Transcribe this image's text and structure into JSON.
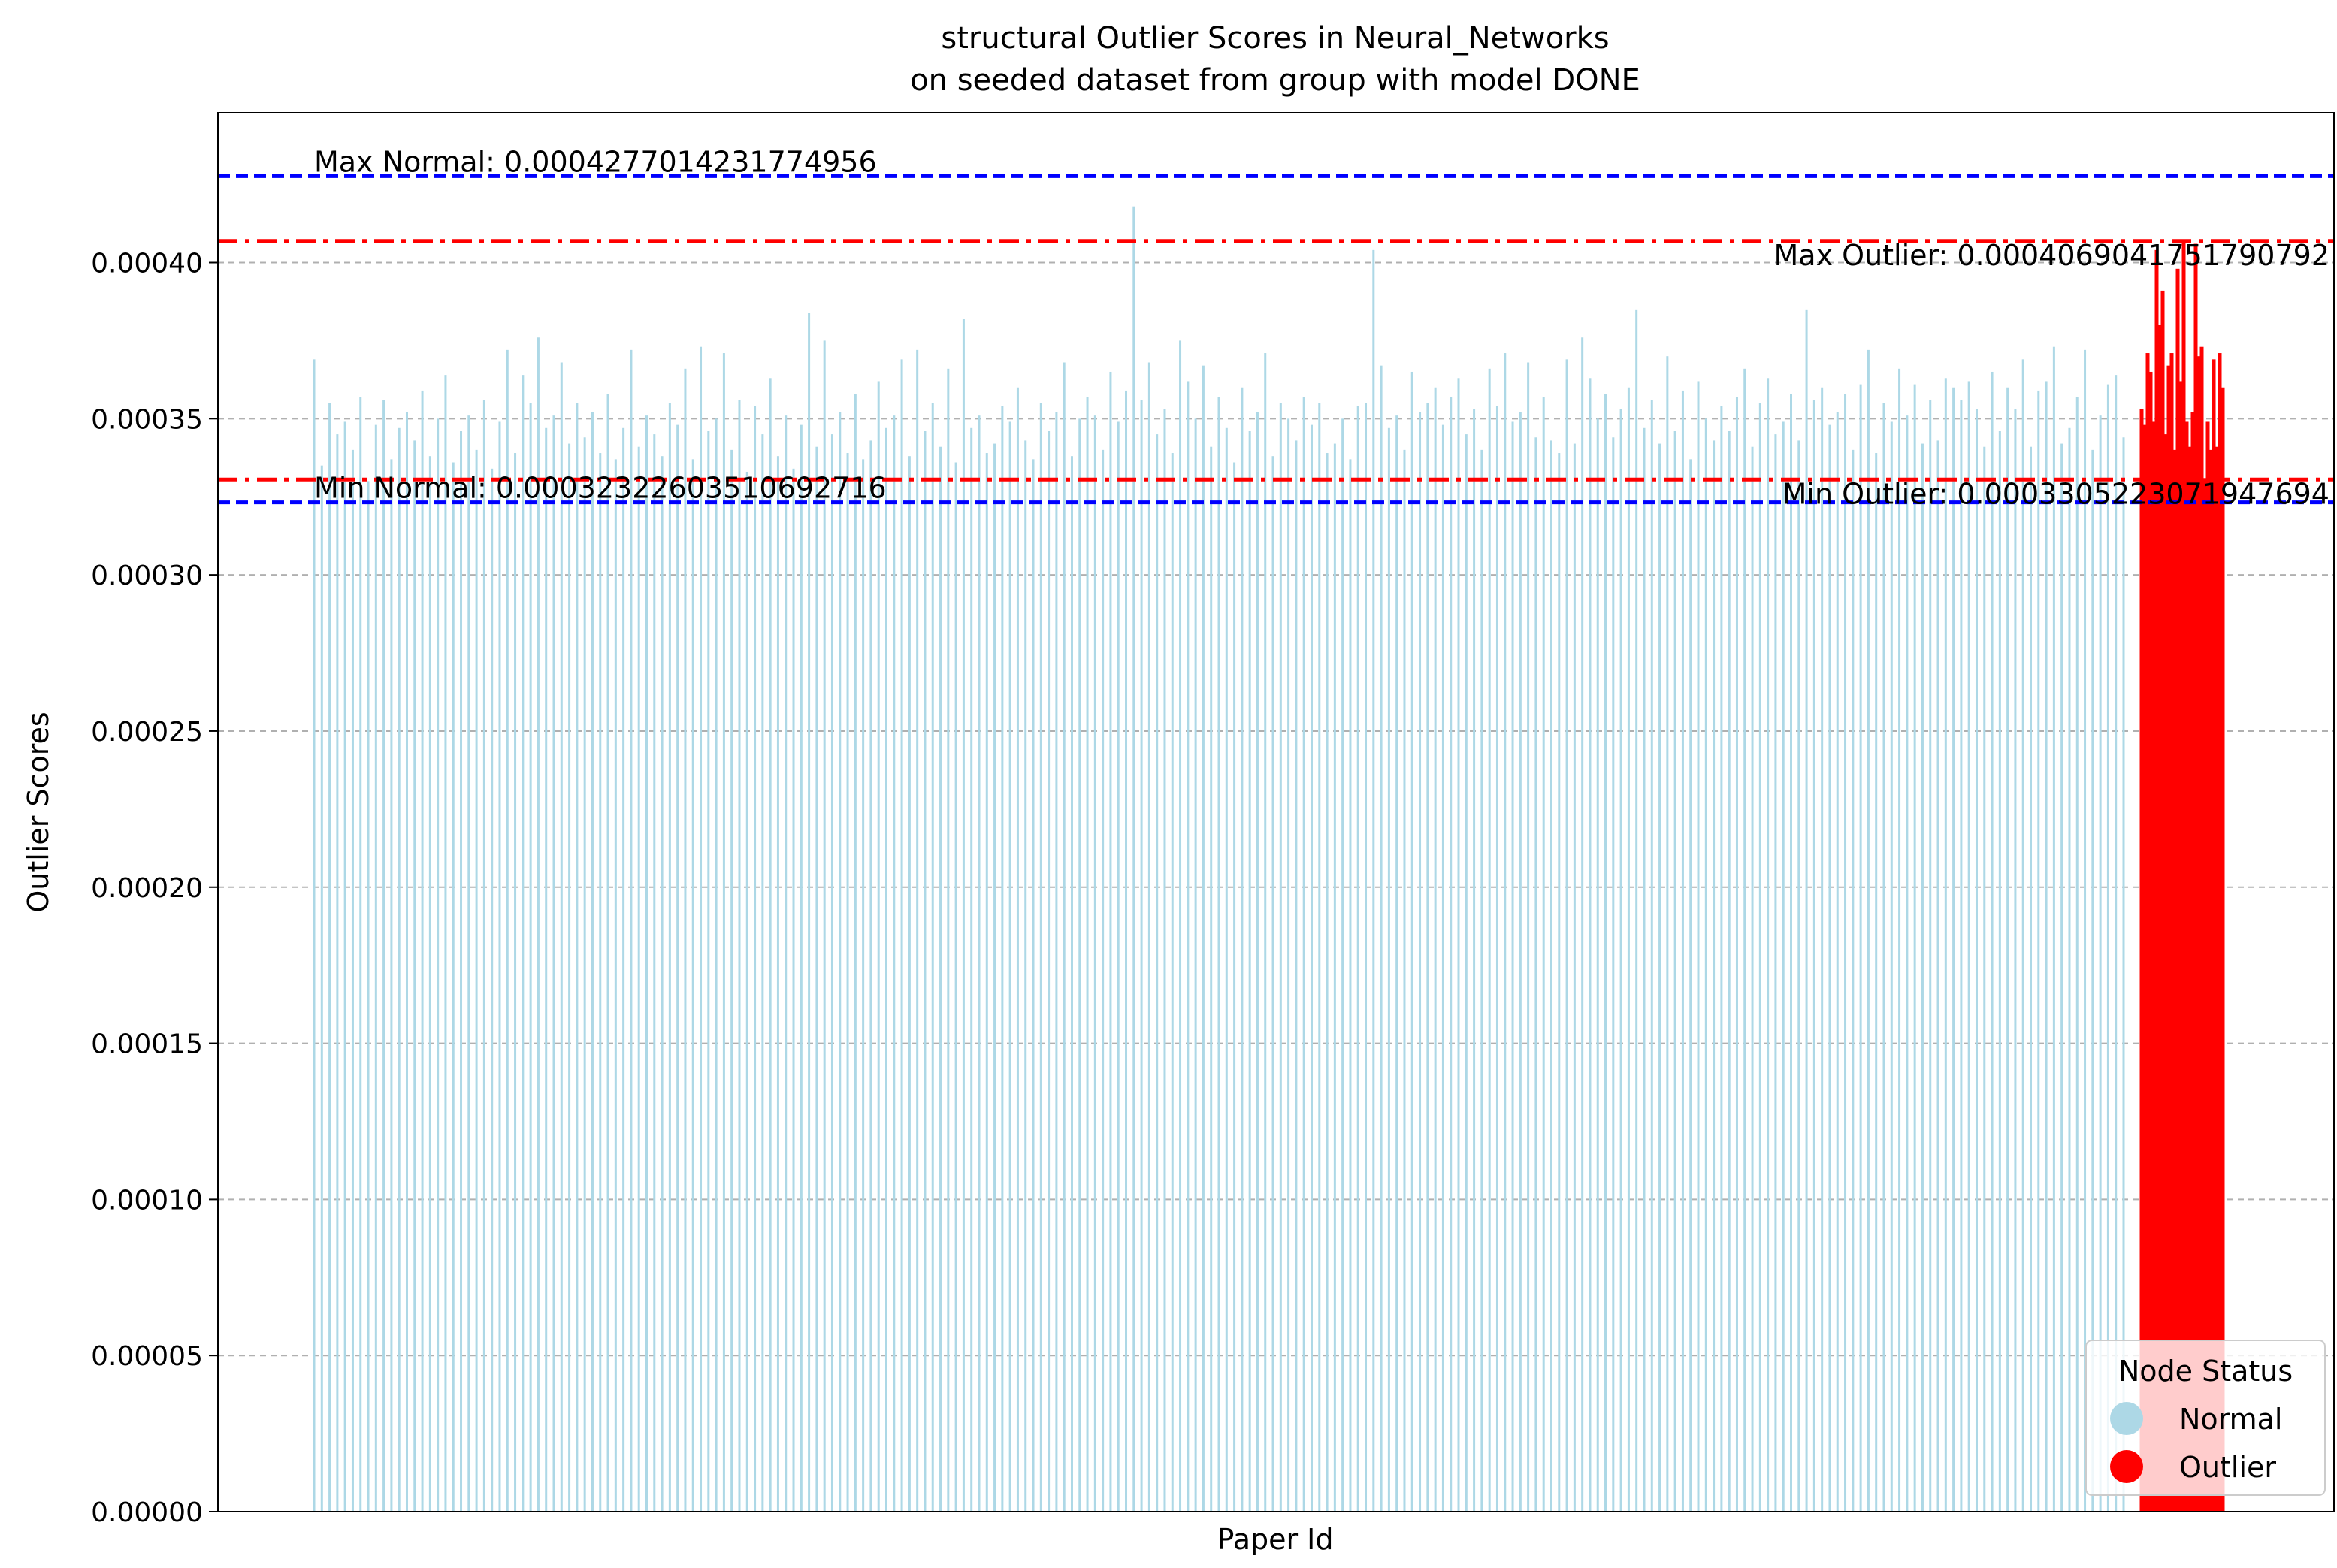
{
  "chart_data": {
    "type": "bar",
    "title_line1": "structural Outlier Scores in Neural_Networks",
    "title_line2": "on seeded dataset from group with model DONE",
    "xlabel": "Paper Id",
    "ylabel": "Outlier Scores",
    "ylim": [
      0,
      0.000448
    ],
    "yticks": [
      {
        "value": 0.0,
        "label": "0.00000"
      },
      {
        "value": 5e-05,
        "label": "0.00005"
      },
      {
        "value": 0.0001,
        "label": "0.00010"
      },
      {
        "value": 0.00015,
        "label": "0.00015"
      },
      {
        "value": 0.0002,
        "label": "0.00020"
      },
      {
        "value": 0.00025,
        "label": "0.00025"
      },
      {
        "value": 0.0003,
        "label": "0.00030"
      },
      {
        "value": 0.00035,
        "label": "0.00035"
      },
      {
        "value": 0.0004,
        "label": "0.00040"
      }
    ],
    "grid": "y-dashed",
    "colors": {
      "normal": "#add8e6",
      "outlier": "#ff0000",
      "normal_ref": "#0000ff",
      "outlier_ref": "#ff0000",
      "grid": "#b0b0b0"
    },
    "reference_lines": [
      {
        "name": "max_normal",
        "value": 0.0004277014231774956,
        "style": "dashed",
        "color": "#0000ff",
        "label": "Max Normal: 0.0004277014231774956"
      },
      {
        "name": "min_normal",
        "value": 0.00032322603510692716,
        "style": "dashed",
        "color": "#0000ff",
        "label": "Min Normal: 0.00032322603510692716"
      },
      {
        "name": "max_outlier",
        "value": 0.0004069041751790792,
        "style": "dashdot",
        "color": "#ff0000",
        "label": "Max Outlier: 0.0004069041751790792"
      },
      {
        "name": "min_outlier",
        "value": 0.0003305223071947694,
        "style": "dashdot",
        "color": "#ff0000",
        "label": "Min Outlier: 0.0003305223071947694"
      }
    ],
    "legend": {
      "title": "Node Status",
      "placement": "lower-right",
      "entries": [
        {
          "label": "Normal",
          "color": "#add8e6"
        },
        {
          "label": "Outlier",
          "color": "#ff0000"
        }
      ]
    },
    "series": [
      {
        "name": "Normal",
        "color": "#add8e6",
        "values": [
          0.000369,
          0.000335,
          0.000355,
          0.000345,
          0.000349,
          0.00034,
          0.000357,
          0.00033,
          0.000348,
          0.000356,
          0.000337,
          0.000347,
          0.000352,
          0.000343,
          0.000359,
          0.000338,
          0.00035,
          0.000364,
          0.000336,
          0.000346,
          0.000351,
          0.00034,
          0.000356,
          0.000334,
          0.000349,
          0.000372,
          0.000339,
          0.000364,
          0.000355,
          0.000376,
          0.000347,
          0.000351,
          0.000368,
          0.000342,
          0.000355,
          0.000344,
          0.000352,
          0.000339,
          0.000358,
          0.000337,
          0.000347,
          0.000372,
          0.000341,
          0.000351,
          0.000345,
          0.000338,
          0.000355,
          0.000348,
          0.000366,
          0.000337,
          0.000373,
          0.000346,
          0.00035,
          0.000371,
          0.00034,
          0.000356,
          0.000333,
          0.000354,
          0.000345,
          0.000363,
          0.000338,
          0.000351,
          0.000334,
          0.000348,
          0.000384,
          0.000341,
          0.000375,
          0.000345,
          0.000352,
          0.000339,
          0.000358,
          0.000337,
          0.000343,
          0.000362,
          0.000347,
          0.000351,
          0.000369,
          0.000338,
          0.000372,
          0.000346,
          0.000355,
          0.000341,
          0.000366,
          0.000336,
          0.000382,
          0.000347,
          0.000351,
          0.000339,
          0.000342,
          0.000354,
          0.000349,
          0.00036,
          0.000343,
          0.000337,
          0.000355,
          0.000346,
          0.000352,
          0.000368,
          0.000338,
          0.00035,
          0.000357,
          0.000351,
          0.00034,
          0.000365,
          0.000349,
          0.000359,
          0.000418,
          0.000356,
          0.000368,
          0.000345,
          0.000353,
          0.000339,
          0.000375,
          0.000362,
          0.00035,
          0.000367,
          0.000341,
          0.000357,
          0.000347,
          0.000336,
          0.00036,
          0.000346,
          0.000352,
          0.000371,
          0.000338,
          0.000355,
          0.00035,
          0.000343,
          0.000357,
          0.000348,
          0.000355,
          0.000339,
          0.000342,
          0.00035,
          0.000337,
          0.000354,
          0.000355,
          0.000404,
          0.000367,
          0.000347,
          0.000351,
          0.00034,
          0.000365,
          0.000352,
          0.000355,
          0.00036,
          0.000348,
          0.000357,
          0.000363,
          0.000345,
          0.000353,
          0.00034,
          0.000366,
          0.000354,
          0.000371,
          0.000349,
          0.000352,
          0.000368,
          0.000344,
          0.000357,
          0.000343,
          0.000339,
          0.000369,
          0.000342,
          0.000376,
          0.000363,
          0.00035,
          0.000358,
          0.000344,
          0.000353,
          0.00036,
          0.000385,
          0.000347,
          0.000356,
          0.000342,
          0.00037,
          0.000346,
          0.000359,
          0.000337,
          0.000362,
          0.00035,
          0.000343,
          0.000354,
          0.000346,
          0.000357,
          0.000366,
          0.000341,
          0.000355,
          0.000363,
          0.000345,
          0.000349,
          0.000358,
          0.000343,
          0.000385,
          0.000356,
          0.00036,
          0.000348,
          0.000352,
          0.000358,
          0.00034,
          0.000361,
          0.000372,
          0.000339,
          0.000355,
          0.000349,
          0.000366,
          0.000351,
          0.000361,
          0.000342,
          0.000356,
          0.000343,
          0.000363,
          0.00036,
          0.000356,
          0.000362,
          0.000353,
          0.000341,
          0.000365,
          0.000346,
          0.00036,
          0.000353,
          0.000369,
          0.000341,
          0.000359,
          0.000362,
          0.000373,
          0.000342,
          0.000347,
          0.000357,
          0.000372,
          0.00034,
          0.000351,
          0.000361,
          0.000364,
          0.000344
        ]
      },
      {
        "name": "Outlier",
        "color": "#ff0000",
        "values": [
          0.000353,
          0.000348,
          0.000371,
          0.000365,
          0.000349,
          0.000404,
          0.00038,
          0.000391,
          0.000345,
          0.000367,
          0.000371,
          0.00034,
          0.000398,
          0.000362,
          0.000407,
          0.000349,
          0.000341,
          0.000352,
          0.000406,
          0.00037,
          0.000373,
          0.000331,
          0.000349,
          0.00034,
          0.000369,
          0.000341,
          0.000371,
          0.00036
        ]
      }
    ]
  }
}
